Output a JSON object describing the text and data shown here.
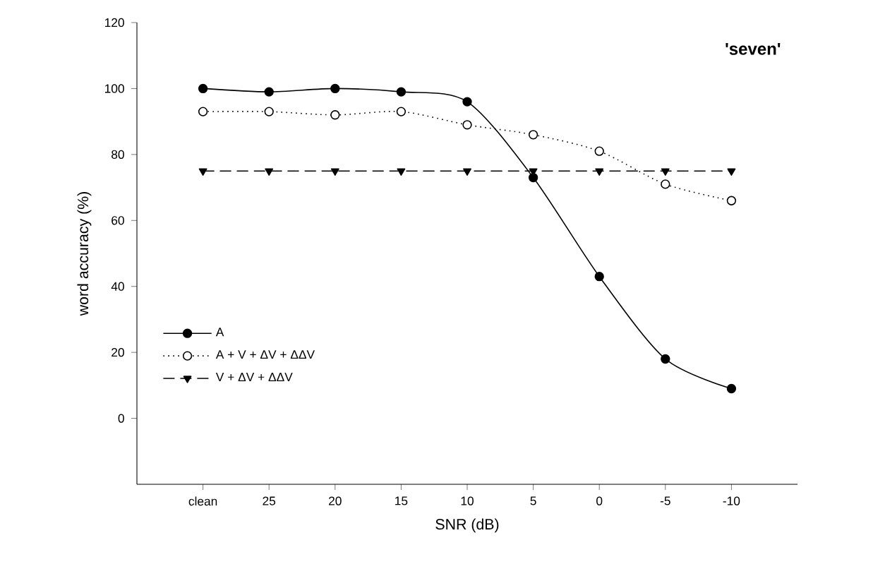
{
  "chart_data": {
    "type": "line",
    "xlabel": "SNR (dB)",
    "ylabel": "word accuracy (%)",
    "categories": [
      "clean",
      "25",
      "20",
      "15",
      "10",
      "5",
      "0",
      "-5",
      "-10"
    ],
    "ylim": [
      -20,
      120
    ],
    "yticks": [
      0,
      20,
      40,
      60,
      80,
      100,
      120
    ],
    "series": [
      {
        "name": "A",
        "color": "#000000",
        "marker": "circle",
        "line_style": "solid",
        "values": [
          100,
          99,
          100,
          99,
          96,
          73,
          43,
          18,
          9
        ]
      },
      {
        "name": "A + V + ΔV + ΔΔV",
        "color": "#000000",
        "marker": "circle",
        "line_style": "dotted",
        "values": [
          93,
          93,
          92,
          93,
          89,
          86,
          81,
          71,
          66
        ]
      },
      {
        "name": "V + ΔV + ΔΔV",
        "color": "#000000",
        "marker": "triangle",
        "line_style": "dashed",
        "values": [
          75,
          75,
          75,
          75,
          75,
          75,
          75,
          75,
          75
        ]
      }
    ],
    "legend": "bottom left",
    "grid": false,
    "annotations": [
      "'seven'"
    ]
  }
}
